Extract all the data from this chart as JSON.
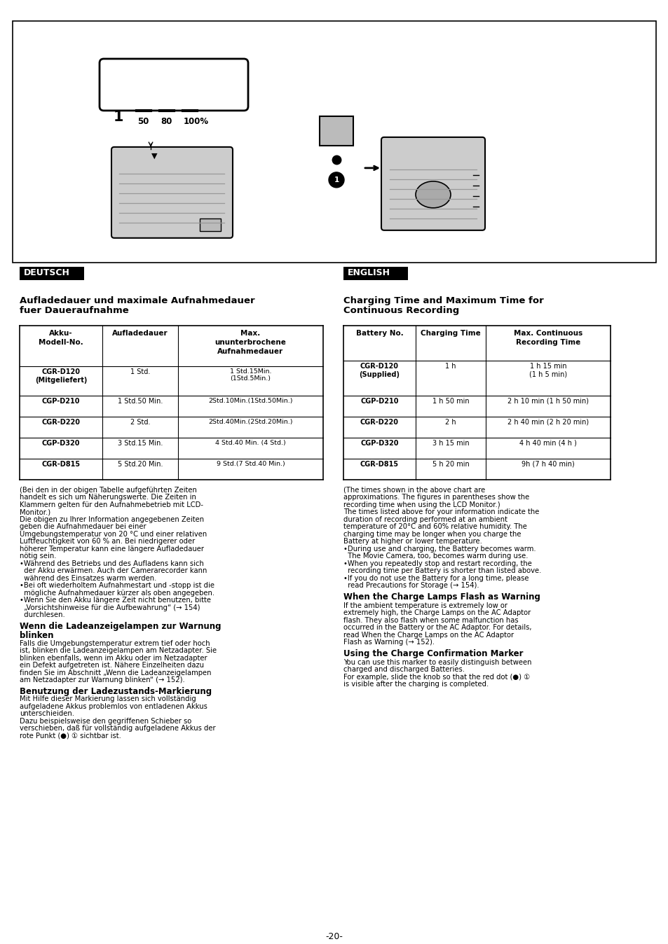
{
  "page_bg": "#ffffff",
  "deutsch_label": "DEUTSCH",
  "english_label": "ENGLISH",
  "de_title": "Aufladedauer und maximale Aufnahmedauer\nfuer Daueraufnahme",
  "en_title": "Charging Time and Maximum Time for\nContinuous Recording",
  "de_table_headers": [
    "Akku-\nModell-No.",
    "Aufladedauer",
    "Max.\nununterbrochene\nAufnahmedauer"
  ],
  "en_table_headers": [
    "Battery No.",
    "Charging Time",
    "Max. Continuous\nRecording Time"
  ],
  "de_table_rows": [
    [
      "CGR-D120\n(Mitgeliefert)",
      "1 Std.",
      "1 Std.15Min.\n(1Std.5Min.)"
    ],
    [
      "CGP-D210",
      "1 Std.50 Min.",
      "2Std.10Min.(1Std.50Min.)"
    ],
    [
      "CGR-D220",
      "2 Std.",
      "2Std.40Min.(2Std.20Min.)"
    ],
    [
      "CGP-D320",
      "3 Std.15 Min.",
      "4 Std.40 Min. (4 Std.)"
    ],
    [
      "CGR-D815",
      "5 Std.20 Min.",
      "9 Std.(7 Std.40 Min.)"
    ]
  ],
  "en_table_rows": [
    [
      "CGR-D120\n(Supplied)",
      "1 h",
      "1 h 15 min\n(1 h 5 min)"
    ],
    [
      "CGP-D210",
      "1 h 50 min",
      "2 h 10 min (1 h 50 min)"
    ],
    [
      "CGR-D220",
      "2 h",
      "2 h 40 min (2 h 20 min)"
    ],
    [
      "CGP-D320",
      "3 h 15 min",
      "4 h 40 min (4 h )"
    ],
    [
      "CGR-D815",
      "5 h 20 min",
      "9h (7 h 40 min)"
    ]
  ],
  "de_body_text_lines": [
    "(Bei den in der obigen Tabelle aufgeführten Zeiten",
    "handelt es sich um Näherungswerte. Die Zeiten in",
    "Klammern gelten für den Aufnahmebetrieb mit LCD-",
    "Monitor.)",
    "Die obigen zu Ihrer Information angegebenen Zeiten",
    "geben die Aufnahmedauer bei einer",
    "Umgebungstemperatur von 20 °C und einer relativen",
    "Luftfeuchtigkeit von 60 % an. Bei niedrigerer oder",
    "höherer Temperatur kann eine längere Aufladedauer",
    "nötig sein.",
    "•Während des Betriebs und des Aufladens kann sich",
    "  der Akku erwärmen. Auch der Camerarecorder kann",
    "  während des Einsatzes warm werden.",
    "•Bei oft wiederholtem Aufnahmestart und -stopp ist die",
    "  mögliche Aufnahmedauer kürzer als oben angegeben.",
    "•Wenn Sie den Akku längere Zeit nicht benutzen, bitte",
    "  „Vorsichtshinweise für die Aufbewahrung“ (→ 154)",
    "  durchlesen."
  ],
  "de_section2_title": "Wenn die Ladeanzeigelampen zur Warnung\nblinken",
  "de_section2_lines": [
    "Falls die Umgebungstemperatur extrem tief oder hoch",
    "ist, blinken die Ladeanzeigelampen am Netzadapter. Sie",
    "blinken ebenfalls, wenn im Akku oder im Netzadapter",
    "ein Defekt aufgetreten ist. Nähere Einzelheiten dazu",
    "finden Sie im Abschnitt „Wenn die Ladeanzeigelampen",
    "am Netzadapter zur Warnung blinken“ (→ 152)."
  ],
  "de_section3_title": "Benutzung der Ladezustands-Markierung",
  "de_section3_lines": [
    "Mit Hilfe dieser Markierung lassen sich vollständig",
    "aufgeladene Akkus problemlos von entladenen Akkus",
    "unterschieiden.",
    "Dazu beispielsweise den gegriffenen Schieber so",
    "verschieben, daß für vollständig aufgeladene Akkus der",
    "rote Punkt (●) ① sichtbar ist."
  ],
  "en_body_text_lines": [
    "(The times shown in the above chart are",
    "approximations. The figures in parentheses show the",
    "recording time when using the LCD Monitor.)",
    "The times listed above for your information indicate the",
    "duration of recording performed at an ambient",
    "temperature of 20°C and 60% relative humidity. The",
    "charging time may be longer when you charge the",
    "Battery at higher or lower temperature.",
    "•During use and charging, the Battery becomes warm.",
    "  The Movie Camera, too, becomes warm during use.",
    "•When you repeatedly stop and restart recording, the",
    "  recording time per Battery is shorter than listed above.",
    "•If you do not use the Battery for a long time, please",
    "  read Precautions for Storage (→ 154)."
  ],
  "en_section2_title": "When the Charge Lamps Flash as Warning",
  "en_section2_lines": [
    "If the ambient temperature is extremely low or",
    "extremely high, the Charge Lamps on the AC Adaptor",
    "flash. They also flash when some malfunction has",
    "occurred in the Battery or the AC Adaptor. For details,",
    "read When the Charge Lamps on the AC Adaptor",
    "Flash as Warning (→ 152)."
  ],
  "en_section3_title": "Using the Charge Confirmation Marker",
  "en_section3_lines": [
    "You can use this marker to easily distinguish between",
    "charged and discharged Batteries.",
    "For example, slide the knob so that the red dot (●) ①",
    "is visible after the charging is completed."
  ],
  "page_number": "-20-"
}
